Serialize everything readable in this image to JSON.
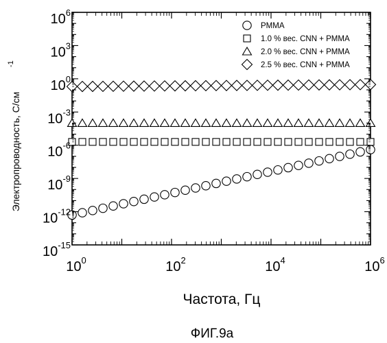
{
  "chart_data": {
    "type": "scatter",
    "title": "",
    "xlabel": "Частота, Гц",
    "ylabel": "Электропроводность, С/см",
    "ylabel_exp": "-1",
    "x_scale": "log",
    "y_scale": "log",
    "xlim": [
      1,
      1000000
    ],
    "ylim": [
      1e-15,
      1000000
    ],
    "x_ticks": [
      {
        "base": "10",
        "exp": "0",
        "value": 1
      },
      {
        "base": "10",
        "exp": "2",
        "value": 100
      },
      {
        "base": "10",
        "exp": "4",
        "value": 10000
      },
      {
        "base": "10",
        "exp": "6",
        "value": 1000000
      }
    ],
    "y_ticks": [
      {
        "base": "10",
        "exp": "-15",
        "value": 1e-15
      },
      {
        "base": "10",
        "exp": "-12",
        "value": 1e-12
      },
      {
        "base": "10",
        "exp": "-9",
        "value": 1e-09
      },
      {
        "base": "10",
        "exp": "-6",
        "value": 1e-06
      },
      {
        "base": "10",
        "exp": "-3",
        "value": 0.001
      },
      {
        "base": "10",
        "exp": "0",
        "value": 1
      },
      {
        "base": "10",
        "exp": "3",
        "value": 1000
      },
      {
        "base": "10",
        "exp": "6",
        "value": 1000000
      }
    ],
    "grid": false,
    "legend_position": "top-right",
    "series": [
      {
        "name": "PMMA",
        "marker": "circle",
        "x_range": [
          1,
          1000000
        ],
        "y_start": 5e-13,
        "y_end": 4e-07,
        "points": 30
      },
      {
        "name": "1.0 % вес. CNN + PMMA",
        "marker": "square",
        "x_range": [
          1,
          1000000
        ],
        "y_start": 2e-06,
        "y_end": 2e-06,
        "points": 30
      },
      {
        "name": "2.0 % вес. CNN + PMMA",
        "marker": "triangle",
        "x_range": [
          1,
          1000000
        ],
        "y_start": 0.0001,
        "y_end": 0.0001,
        "points": 30
      },
      {
        "name": "2.5 % вес. CNN + PMMA",
        "marker": "diamond",
        "x_range": [
          1,
          1000000
        ],
        "y_start": 0.2,
        "y_end": 0.3,
        "points": 30
      }
    ]
  },
  "caption": "ФИГ.9а"
}
